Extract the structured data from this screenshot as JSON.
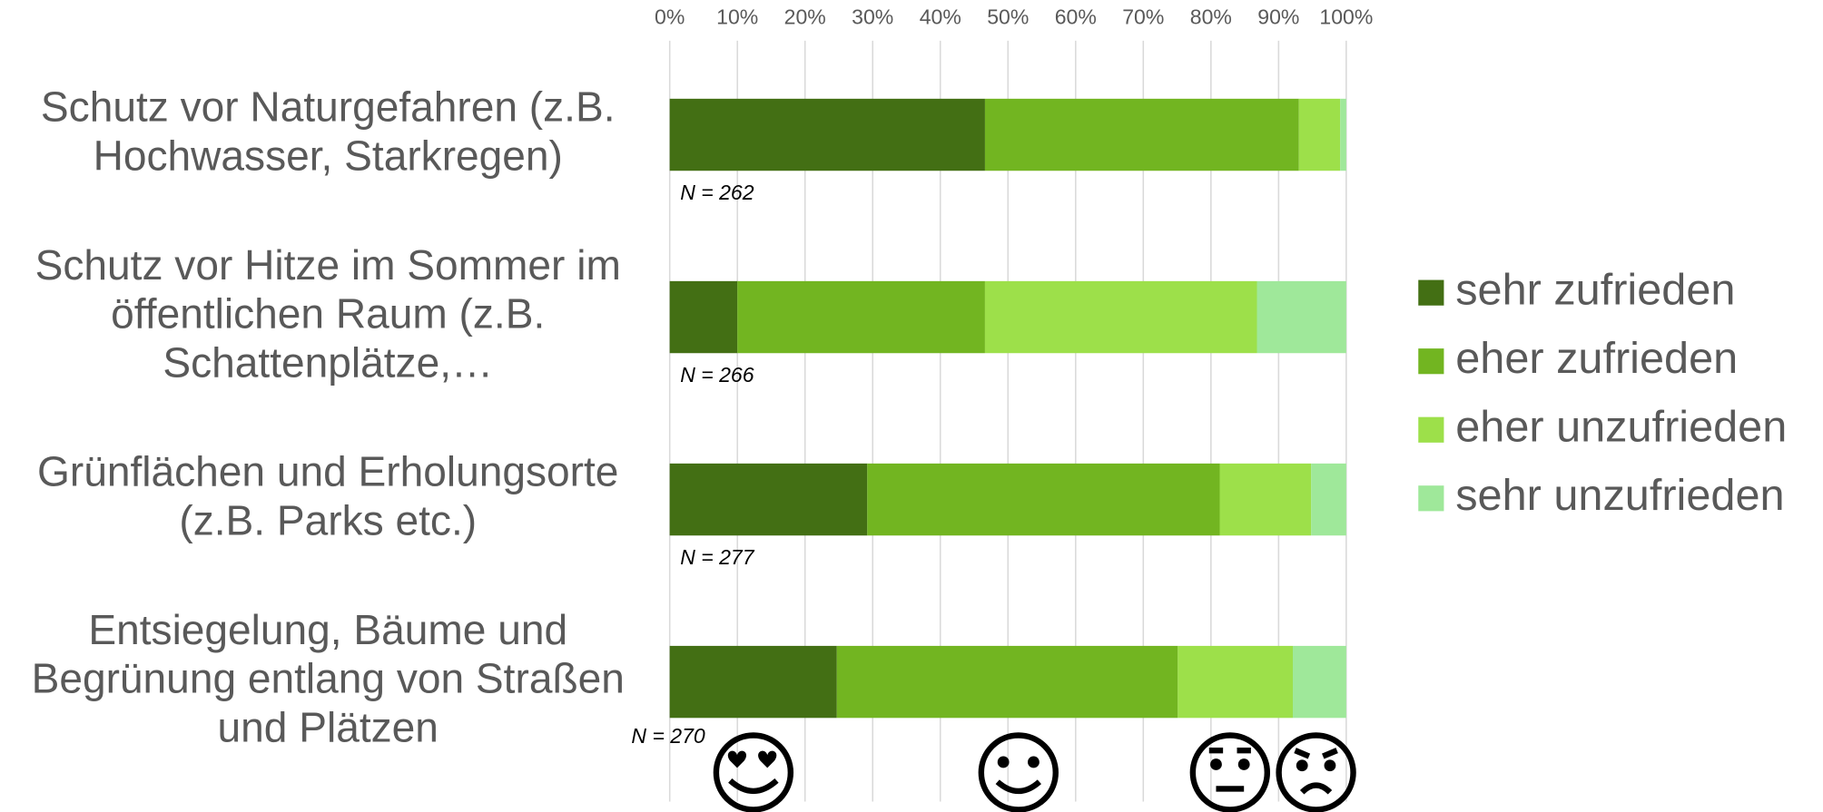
{
  "chart_data": {
    "type": "stacked_bar_horizontal",
    "categories": [
      "Schutz vor Naturgefahren (z.B.\nHochwasser, Starkregen)",
      "Schutz vor Hitze im Sommer im\nöffentlichen Raum (z.B.\nSchattenplätze,…",
      "Grünflächen und Erholungsorte\n(z.B. Parks etc.)",
      "Entsiegelung, Bäume und\nBegrünung entlang von Straßen\nund Plätzen"
    ],
    "series": [
      {
        "name": "sehr zufrieden",
        "color": "#436f14",
        "values": [
          46.6,
          10.0,
          29.2,
          24.7
        ]
      },
      {
        "name": "eher zufrieden",
        "color": "#72b521",
        "values": [
          46.4,
          36.6,
          52.1,
          50.4
        ]
      },
      {
        "name": "eher unzufrieden",
        "color": "#9de04a",
        "values": [
          6.1,
          40.2,
          13.5,
          17.0
        ]
      },
      {
        "name": "sehr unzufrieden",
        "color": "#9fe89a",
        "values": [
          0.9,
          13.2,
          5.2,
          7.9
        ]
      }
    ],
    "annotations": [
      "N = 262",
      "N = 266",
      "N = 277",
      "N = 270"
    ],
    "xlim": [
      0,
      100
    ],
    "xticks": [
      {
        "value": 0,
        "label": "0%"
      },
      {
        "value": 10,
        "label": "10%"
      },
      {
        "value": 20,
        "label": "20%"
      },
      {
        "value": 30,
        "label": "30%"
      },
      {
        "value": 40,
        "label": "40%"
      },
      {
        "value": 50,
        "label": "50%"
      },
      {
        "value": 60,
        "label": "60%"
      },
      {
        "value": 70,
        "label": "70%"
      },
      {
        "value": 80,
        "label": "80%"
      },
      {
        "value": 90,
        "label": "90%"
      },
      {
        "value": 100,
        "label": "100%"
      }
    ],
    "grid": true,
    "legend": "right"
  }
}
